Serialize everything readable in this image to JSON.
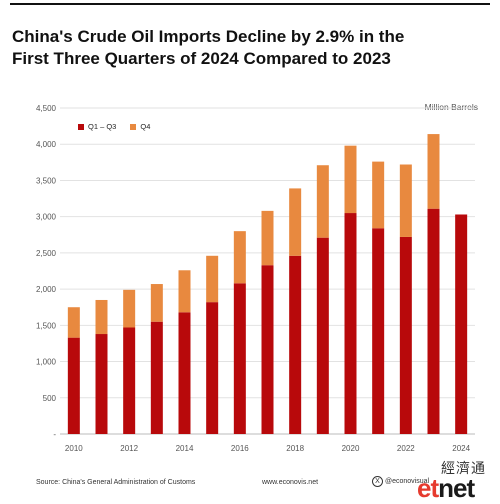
{
  "title_line1": "China's Crude Oil Imports Decline by 2.9% in the",
  "title_line2": "First Three Quarters of 2024 Compared to 2023",
  "unit": "Million Barrels",
  "legend": [
    {
      "label": "Q1 – Q3",
      "color": "#b8090b"
    },
    {
      "label": "Q4",
      "color": "#e8893f"
    }
  ],
  "source": "Source: China's General Administration of Customs",
  "website": "www.econovis.net",
  "handle": "@econovisual",
  "watermark": {
    "chinese": "經濟通",
    "logo_part1": "et",
    "logo_part2": "net"
  },
  "chart_data": {
    "type": "bar",
    "stacked": true,
    "categories": [
      "2010",
      "2011",
      "2012",
      "2013",
      "2014",
      "2015",
      "2016",
      "2017",
      "2018",
      "2019",
      "2020",
      "2021",
      "2022",
      "2023",
      "2024"
    ],
    "x_tick_labels": [
      "2010",
      "",
      "2012",
      "",
      "2014",
      "",
      "2016",
      "",
      "2018",
      "",
      "2020",
      "",
      "2022",
      "",
      "2024"
    ],
    "series": [
      {
        "name": "Q1 – Q3",
        "color": "#b8090b",
        "values": [
          1330,
          1380,
          1470,
          1550,
          1680,
          1820,
          2080,
          2330,
          2460,
          2710,
          3050,
          2840,
          2720,
          3110,
          3030
        ]
      },
      {
        "name": "Q4",
        "color": "#e8893f",
        "values": [
          420,
          470,
          520,
          520,
          580,
          640,
          720,
          750,
          930,
          1000,
          930,
          920,
          1000,
          1030,
          0
        ]
      }
    ],
    "y_ticks": [
      "-",
      "500",
      "1,000",
      "1,500",
      "2,000",
      "2,500",
      "3,000",
      "3,500",
      "4,000",
      "4,500"
    ],
    "ylim": [
      0,
      4500
    ],
    "grid": true
  }
}
